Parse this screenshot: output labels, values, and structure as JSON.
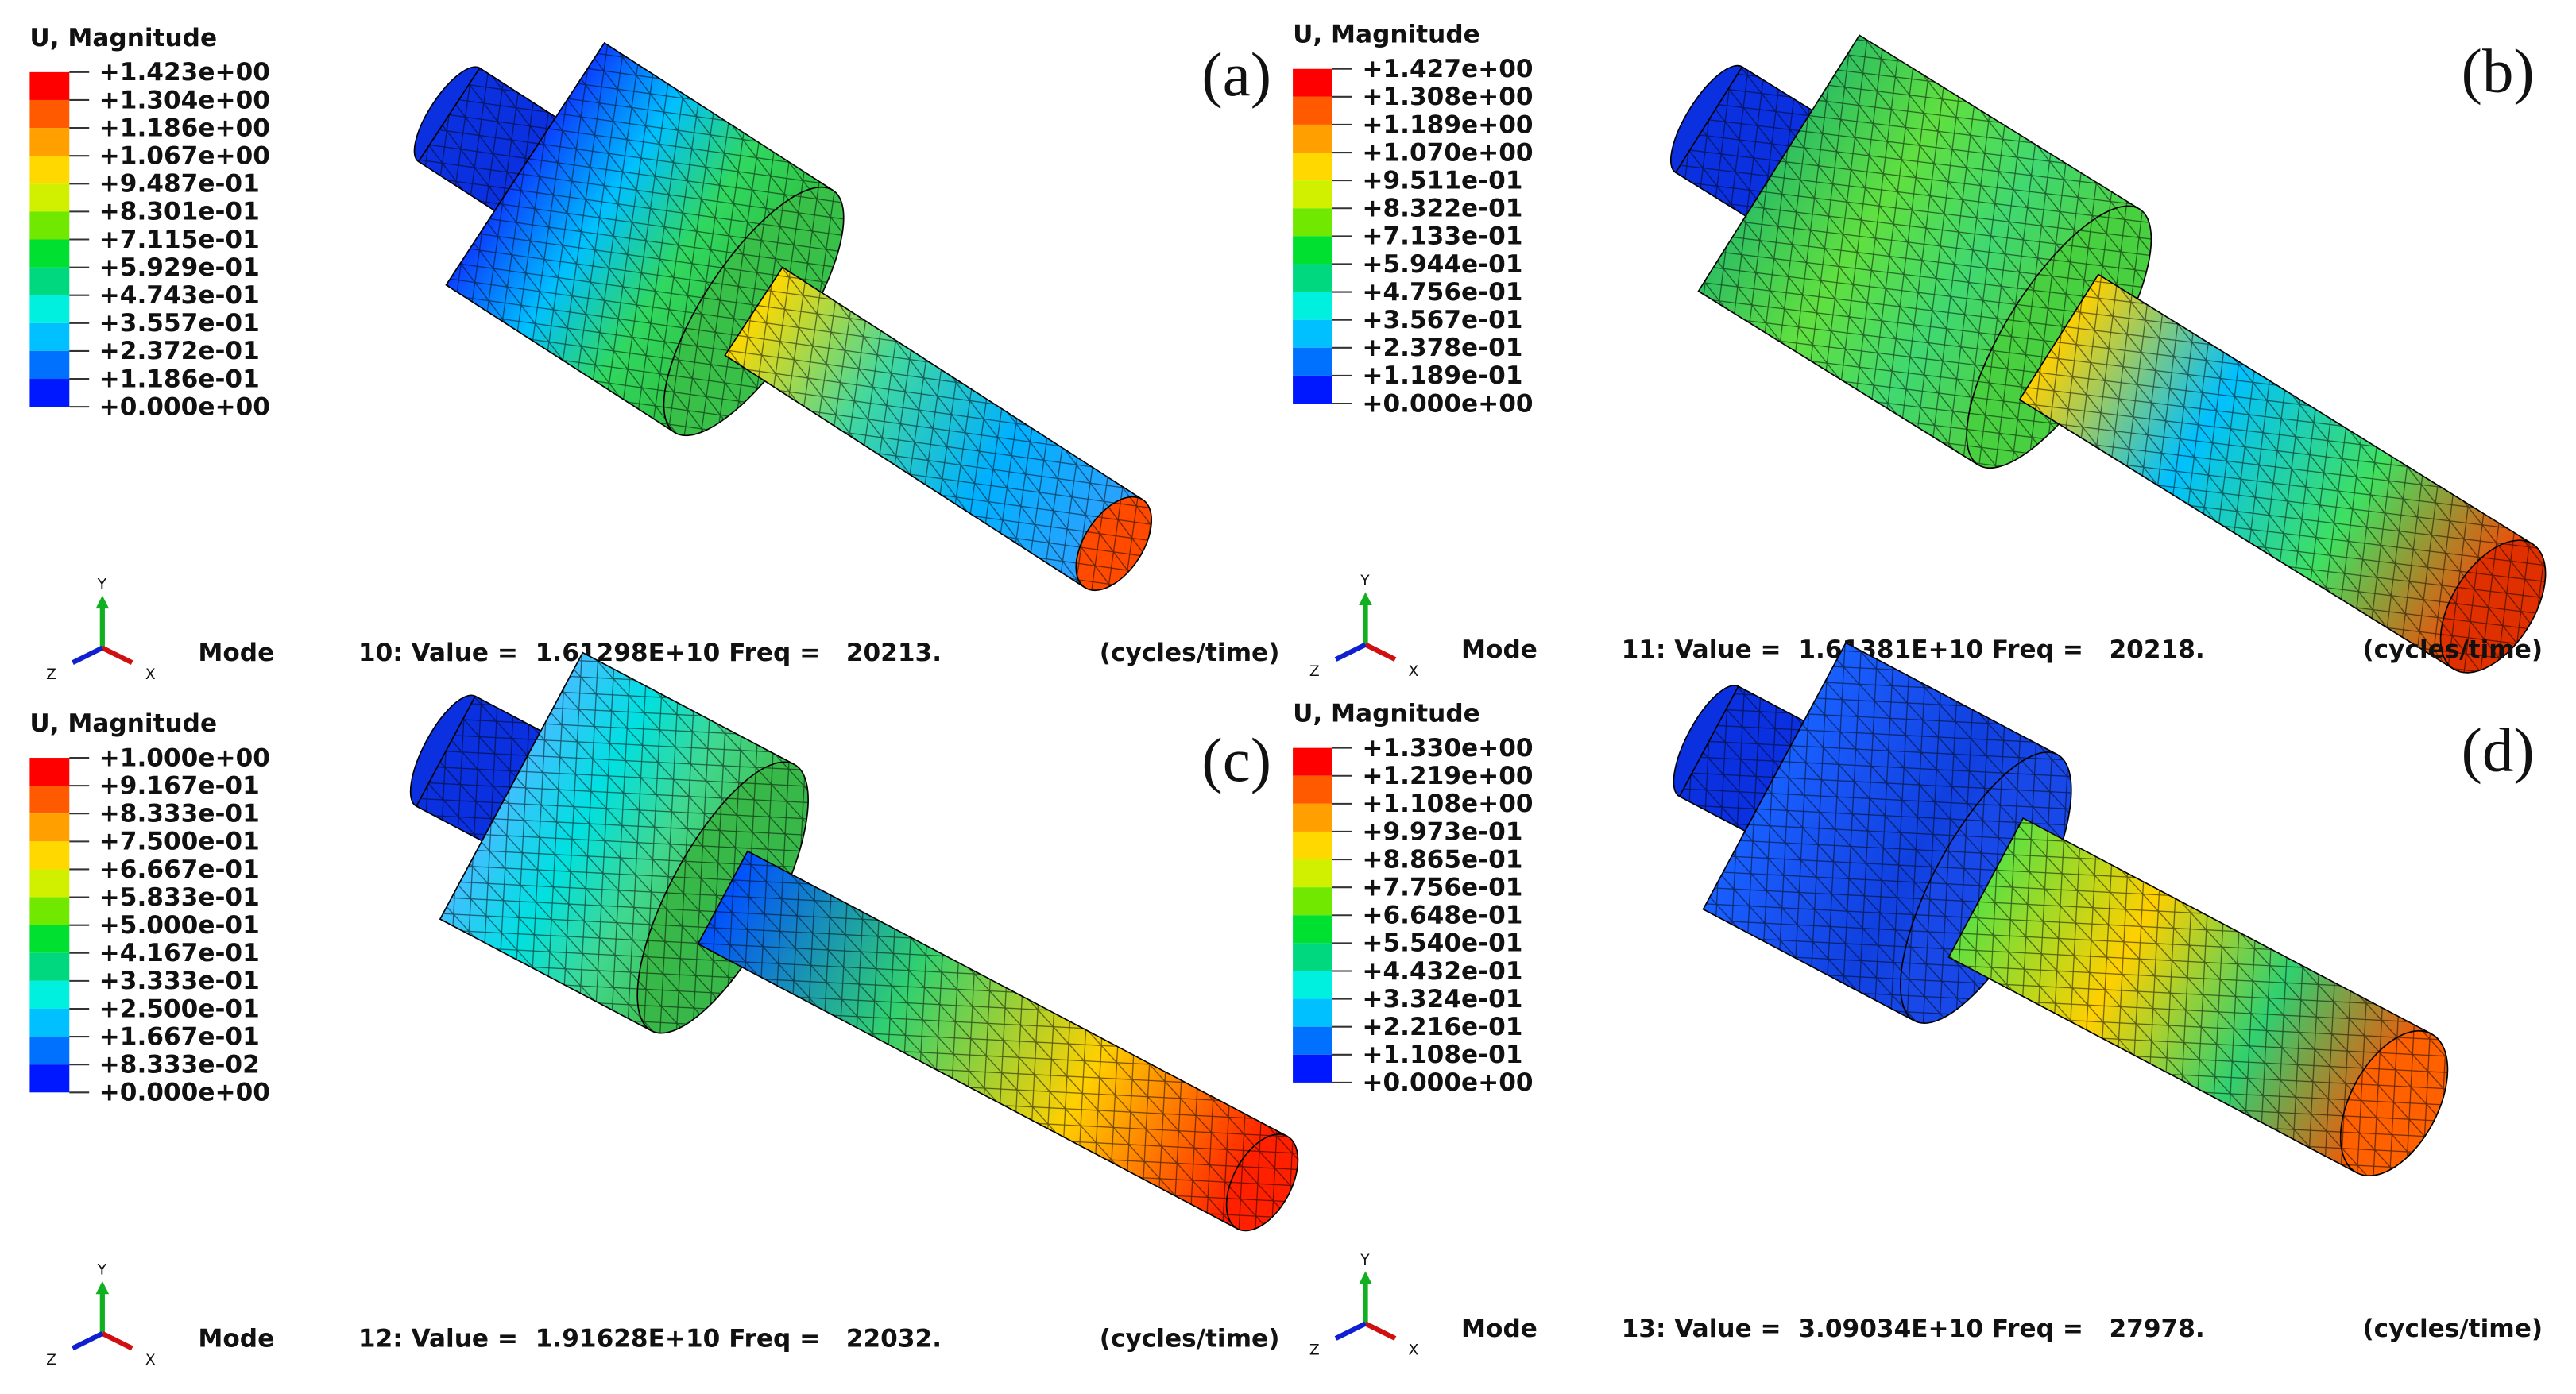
{
  "panels": [
    {
      "label": "(a)",
      "legend_title": "U, Magnitude",
      "legend_labels": [
        "+1.423e+00",
        "+1.304e+00",
        "+1.186e+00",
        "+1.067e+00",
        "+9.487e-01",
        "+8.301e-01",
        "+7.115e-01",
        "+5.929e-01",
        "+4.743e-01",
        "+3.557e-01",
        "+2.372e-01",
        "+1.186e-01",
        "+0.000e+00"
      ],
      "mode_word": "Mode",
      "mode_info": "10: Value =  1.61298E+10 Freq =   20213.",
      "units": "(cycles/time)",
      "triad": {
        "x": "X",
        "y": "Y",
        "z": "Z"
      }
    },
    {
      "label": "(b)",
      "legend_title": "U, Magnitude",
      "legend_labels": [
        "+1.427e+00",
        "+1.308e+00",
        "+1.189e+00",
        "+1.070e+00",
        "+9.511e-01",
        "+8.322e-01",
        "+7.133e-01",
        "+5.944e-01",
        "+4.756e-01",
        "+3.567e-01",
        "+2.378e-01",
        "+1.189e-01",
        "+0.000e+00"
      ],
      "mode_word": "Mode",
      "mode_info": "11: Value =  1.61381E+10 Freq =   20218.",
      "units": "(cycles/time)",
      "triad": {
        "x": "X",
        "y": "Y",
        "z": "Z"
      }
    },
    {
      "label": "(c)",
      "legend_title": "U, Magnitude",
      "legend_labels": [
        "+1.000e+00",
        "+9.167e-01",
        "+8.333e-01",
        "+7.500e-01",
        "+6.667e-01",
        "+5.833e-01",
        "+5.000e-01",
        "+4.167e-01",
        "+3.333e-01",
        "+2.500e-01",
        "+1.667e-01",
        "+8.333e-02",
        "+0.000e+00"
      ],
      "mode_word": "Mode",
      "mode_info": "12: Value =  1.91628E+10 Freq =   22032.",
      "units": "(cycles/time)",
      "triad": {
        "x": "X",
        "y": "Y",
        "z": "Z"
      }
    },
    {
      "label": "(d)",
      "legend_title": "U, Magnitude",
      "legend_labels": [
        "+1.330e+00",
        "+1.219e+00",
        "+1.108e+00",
        "+9.973e-01",
        "+8.865e-01",
        "+7.756e-01",
        "+6.648e-01",
        "+5.540e-01",
        "+4.432e-01",
        "+3.324e-01",
        "+2.216e-01",
        "+1.108e-01",
        "+0.000e+00"
      ],
      "mode_word": "Mode",
      "mode_info": "13: Value =  3.09034E+10 Freq =   27978.",
      "units": "(cycles/time)",
      "triad": {
        "x": "X",
        "y": "Y",
        "z": "Z"
      }
    }
  ]
}
